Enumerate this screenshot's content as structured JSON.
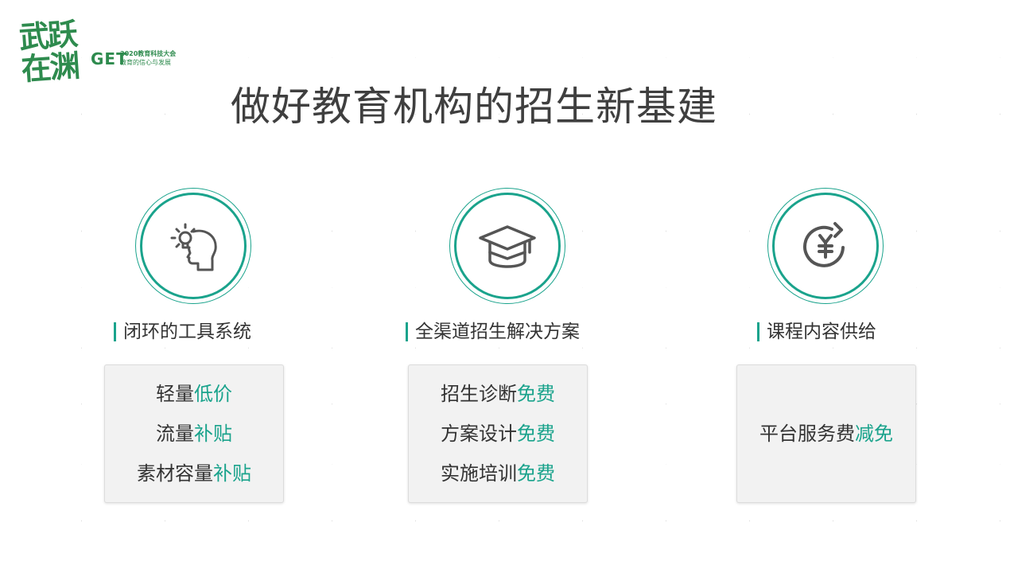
{
  "logo": {
    "brush_line1": "武跃",
    "brush_line2": "在渊",
    "get": "GET",
    "line1": "2020教育科技大会",
    "line2": "教育的信心与发展"
  },
  "title": "做好教育机构的招生新基建",
  "colors": {
    "accent": "#1aa38c",
    "brand": "#2e8b4e",
    "text": "#333333"
  },
  "columns": [
    {
      "icon": "head-lightbulb-icon",
      "heading": "闭环的工具系统",
      "items": [
        {
          "text": "轻量",
          "highlight": "低价"
        },
        {
          "text": "流量",
          "highlight": "补贴"
        },
        {
          "text": "素材容量",
          "highlight": "补贴"
        }
      ]
    },
    {
      "icon": "graduation-cap-icon",
      "heading": "全渠道招生解决方案",
      "items": [
        {
          "text": "招生诊断",
          "highlight": "免费"
        },
        {
          "text": "方案设计",
          "highlight": "免费"
        },
        {
          "text": "实施培训",
          "highlight": "免费"
        }
      ]
    },
    {
      "icon": "yuan-refresh-icon",
      "heading": "课程内容供给",
      "items": [
        {
          "text": "平台服务费",
          "highlight": "减免"
        }
      ]
    }
  ]
}
